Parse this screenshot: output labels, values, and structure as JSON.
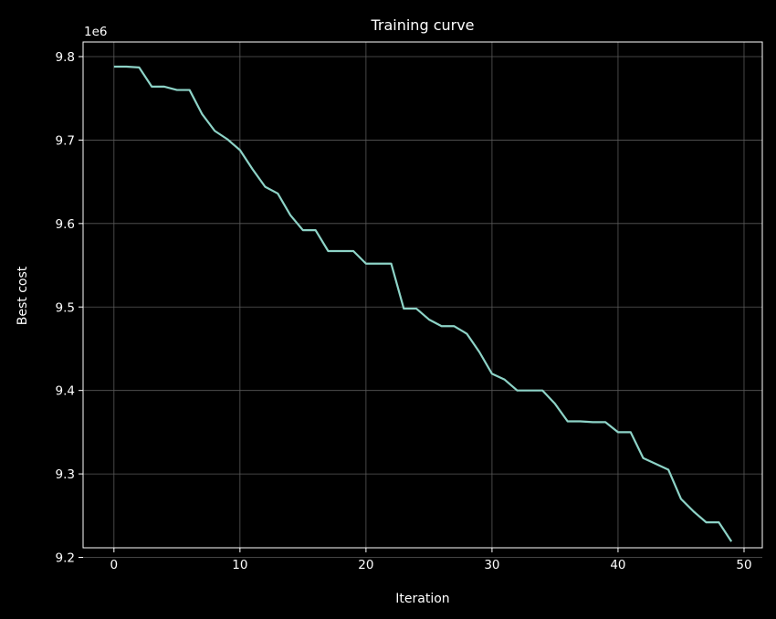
{
  "chart_data": {
    "type": "line",
    "title": "Training curve",
    "xlabel": "Iteration",
    "ylabel": "Best cost",
    "y_offset_label": "1e6",
    "xlim": [
      -2.45,
      51.45
    ],
    "ylim": [
      9.2115,
      9.8175
    ],
    "x_ticks": [
      0,
      10,
      20,
      30,
      40,
      50
    ],
    "y_ticks": [
      9.2,
      9.3,
      9.4,
      9.5,
      9.6,
      9.7,
      9.8
    ],
    "grid": true,
    "colors": {
      "background": "#000000",
      "axes": "#ffffff",
      "grid": "#5a5a5a",
      "line": "#8dd3c7"
    },
    "series": [
      {
        "x": [
          0,
          1,
          2,
          3,
          4,
          5,
          6,
          7,
          8,
          9,
          10,
          11,
          12,
          13,
          14,
          15,
          16,
          17,
          18,
          19,
          20,
          21,
          22,
          23,
          24,
          25,
          26,
          27,
          28,
          29,
          30,
          31,
          32,
          33,
          34,
          35,
          36,
          37,
          38,
          39,
          40,
          41,
          42,
          43,
          44,
          45,
          46,
          47,
          48,
          49
        ],
        "values": [
          9.788,
          9.788,
          9.787,
          9.764,
          9.764,
          9.76,
          9.76,
          9.731,
          9.711,
          9.701,
          9.688,
          9.665,
          9.644,
          9.636,
          9.61,
          9.592,
          9.592,
          9.567,
          9.567,
          9.567,
          9.552,
          9.552,
          9.552,
          9.498,
          9.498,
          9.485,
          9.477,
          9.477,
          9.468,
          9.446,
          9.42,
          9.413,
          9.4,
          9.4,
          9.4,
          9.384,
          9.363,
          9.363,
          9.362,
          9.362,
          9.35,
          9.35,
          9.319,
          9.312,
          9.305,
          9.27,
          9.255,
          9.242,
          9.242,
          9.219
        ]
      }
    ]
  }
}
